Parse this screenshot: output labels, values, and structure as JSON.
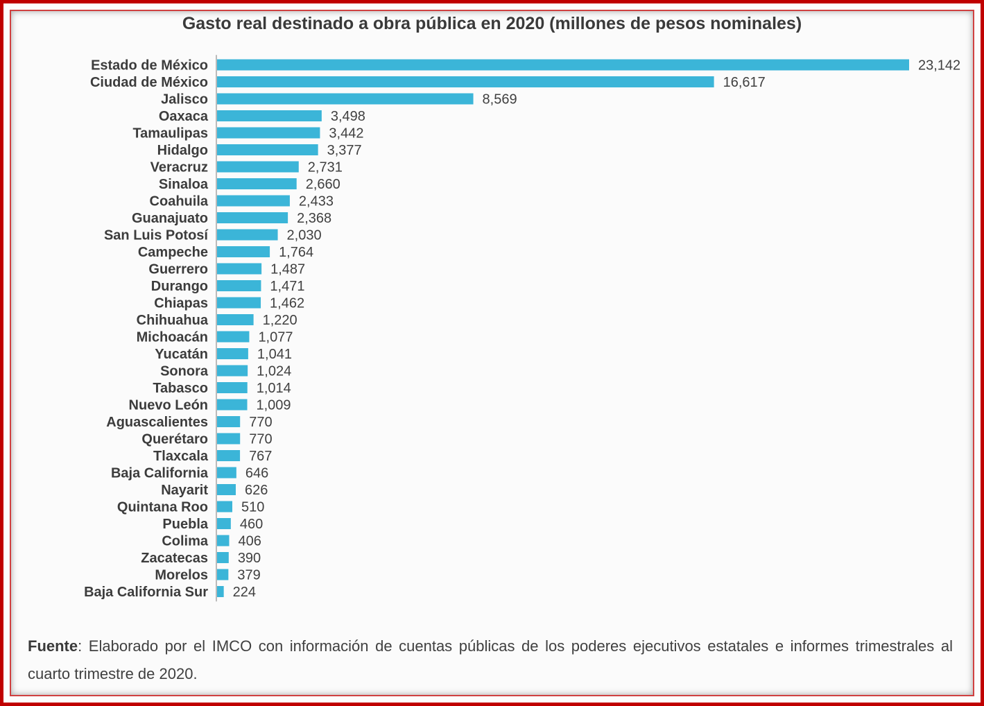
{
  "chart_data": {
    "type": "bar",
    "orientation": "horizontal",
    "title": "Gasto real destinado a obra pública en 2020 (millones de pesos nominales)",
    "categories": [
      "Estado de México",
      "Ciudad de México",
      "Jalisco",
      "Oaxaca",
      "Tamaulipas",
      "Hidalgo",
      "Veracruz",
      "Sinaloa",
      "Coahuila",
      "Guanajuato",
      "San Luis Potosí",
      "Campeche",
      "Guerrero",
      "Durango",
      "Chiapas",
      "Chihuahua",
      "Michoacán",
      "Yucatán",
      "Sonora",
      "Tabasco",
      "Nuevo León",
      "Aguascalientes",
      "Querétaro",
      "Tlaxcala",
      "Baja California",
      "Nayarit",
      "Quintana Roo",
      "Puebla",
      "Colima",
      "Zacatecas",
      "Morelos",
      "Baja California Sur"
    ],
    "values": [
      23142,
      16617,
      8569,
      3498,
      3442,
      3377,
      2731,
      2660,
      2433,
      2368,
      2030,
      1764,
      1487,
      1471,
      1462,
      1220,
      1077,
      1041,
      1024,
      1014,
      1009,
      770,
      770,
      767,
      646,
      626,
      510,
      460,
      406,
      390,
      379,
      224
    ],
    "value_labels": [
      "23,142",
      "16,617",
      "8,569",
      "3,498",
      "3,442",
      "3,377",
      "2,731",
      "2,660",
      "2,433",
      "2,368",
      "2,030",
      "1,764",
      "1,487",
      "1,471",
      "1,462",
      "1,220",
      "1,077",
      "1,041",
      "1,024",
      "1,014",
      "1,009",
      "770",
      "770",
      "767",
      "646",
      "626",
      "510",
      "460",
      "406",
      "390",
      "379",
      "224"
    ],
    "bar_color": "#3bb5d8",
    "axis_color": "#a6a6a6",
    "xlim": [
      0,
      23142
    ],
    "grid": false,
    "legend": "none"
  },
  "source": {
    "label": "Fuente",
    "text": ": Elaborado por el IMCO con información de cuentas públicas de los poderes ejecutivos estatales e informes trimestrales al cuarto trimestre de 2020."
  },
  "frame_color": "#c00000"
}
